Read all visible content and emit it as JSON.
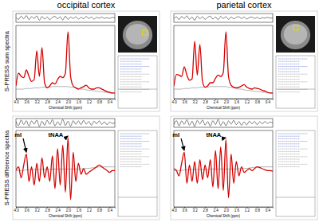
{
  "chart_data": [
    {
      "type": "line",
      "title": "occipital cortex",
      "ylabel": "S-PRESS sum spectra",
      "xlabel": "Chemical Shift (ppm)",
      "x": [
        4.0,
        3.9,
        3.8,
        3.7,
        3.6,
        3.5,
        3.4,
        3.3,
        3.2,
        3.1,
        3.0,
        2.9,
        2.8,
        2.7,
        2.6,
        2.5,
        2.4,
        2.3,
        2.2,
        2.1,
        2.0,
        1.9,
        1.8,
        1.7,
        1.6,
        1.5,
        1.4,
        1.3,
        1.2,
        1.1,
        1.0,
        0.9,
        0.8,
        0.7,
        0.6,
        0.5,
        0.4,
        0.3,
        0.2
      ],
      "xlim": [
        4.0,
        0.2
      ],
      "xticks": [
        {
          "value": 4,
          "label": "4.0"
        },
        3.6,
        3.2,
        2.8,
        2.4,
        {
          "value": 2,
          "label": "2.0"
        },
        1.6,
        1.2,
        0.8,
        0.4
      ],
      "ylim": [
        -0.05,
        1.1
      ],
      "y2lim": [
        -0.15,
        0.15
      ],
      "tick_labels": "x",
      "series": [
        {
          "color": "#000000",
          "axis": "y2",
          "values": [
            0.02,
            -0.05,
            0.06,
            -0.03,
            0.08,
            -0.06,
            0.04,
            -0.02,
            0.07,
            -0.08,
            0.05,
            -0.04,
            0.03,
            -0.06,
            0.02,
            0.05,
            -0.03,
            0.04,
            -0.07,
            0.06,
            -0.05,
            0.03,
            -0.02,
            0.04,
            -0.04,
            0.02,
            -0.03,
            0.05,
            -0.02,
            0.03,
            -0.04,
            0.02,
            -0.01,
            0.03,
            -0.02,
            0.01,
            -0.02,
            0.02,
            0.0
          ]
        },
        {
          "color": "#808080",
          "values": [
            0.1,
            0.1,
            0.1,
            0.1,
            0.11,
            0.11,
            0.11,
            0.12,
            0.12,
            0.12,
            0.13,
            0.13,
            0.13,
            0.13,
            0.14,
            0.14,
            0.14,
            0.14,
            0.14,
            0.14,
            0.14,
            0.13,
            0.13,
            0.12,
            0.11,
            0.1,
            0.1,
            0.09,
            0.08,
            0.08,
            0.07,
            0.07,
            0.06,
            0.06,
            0.05,
            0.05,
            0.04,
            0.04,
            0.04
          ]
        },
        {
          "color": "#d40000",
          "values": [
            0.15,
            0.35,
            0.3,
            0.28,
            0.4,
            0.3,
            0.22,
            0.25,
            0.7,
            0.3,
            0.75,
            0.2,
            0.12,
            0.15,
            0.2,
            0.18,
            0.25,
            0.3,
            0.28,
            0.35,
            1.0,
            0.3,
            0.15,
            0.12,
            0.1,
            0.12,
            0.14,
            0.16,
            0.12,
            0.1,
            0.1,
            0.12,
            0.12,
            0.1,
            0.08,
            0.06,
            0.05,
            0.04,
            0.04
          ]
        }
      ]
    },
    {
      "type": "line",
      "title": "parietal cortex",
      "xlabel": "Chemical Shift (ppm)",
      "x": [
        4.0,
        3.9,
        3.8,
        3.7,
        3.6,
        3.5,
        3.4,
        3.3,
        3.2,
        3.1,
        3.0,
        2.9,
        2.8,
        2.7,
        2.6,
        2.5,
        2.4,
        2.3,
        2.2,
        2.1,
        2.0,
        1.9,
        1.8,
        1.7,
        1.6,
        1.5,
        1.4,
        1.3,
        1.2,
        1.1,
        1.0,
        0.9,
        0.8,
        0.7,
        0.6,
        0.5,
        0.4,
        0.3,
        0.2
      ],
      "xlim": [
        4.0,
        0.2
      ],
      "xticks": [
        {
          "value": 4,
          "label": "4.0"
        },
        3.6,
        3.2,
        2.8,
        2.4,
        {
          "value": 2,
          "label": "2.0"
        },
        1.6,
        1.2,
        0.8,
        0.4
      ],
      "ylim": [
        -0.05,
        1.1
      ],
      "y2lim": [
        -0.15,
        0.15
      ],
      "tick_labels": "x",
      "series": [
        {
          "color": "#000000",
          "axis": "y2",
          "values": [
            -0.03,
            0.04,
            -0.06,
            0.05,
            -0.02,
            0.07,
            -0.05,
            0.03,
            -0.08,
            0.06,
            -0.03,
            0.04,
            -0.05,
            0.02,
            0.06,
            -0.04,
            0.03,
            -0.06,
            0.05,
            -0.02,
            0.04,
            -0.05,
            0.03,
            -0.03,
            0.02,
            0.04,
            -0.02,
            0.03,
            -0.04,
            0.01,
            0.03,
            -0.02,
            0.02,
            -0.03,
            0.01,
            -0.01,
            0.02,
            -0.01,
            0.0
          ]
        },
        {
          "color": "#808080",
          "values": [
            0.1,
            0.1,
            0.1,
            0.1,
            0.11,
            0.11,
            0.11,
            0.12,
            0.12,
            0.12,
            0.13,
            0.13,
            0.13,
            0.13,
            0.14,
            0.14,
            0.14,
            0.14,
            0.14,
            0.14,
            0.14,
            0.13,
            0.13,
            0.12,
            0.11,
            0.1,
            0.1,
            0.09,
            0.08,
            0.08,
            0.07,
            0.07,
            0.06,
            0.06,
            0.05,
            0.05,
            0.04,
            0.04,
            0.04
          ]
        },
        {
          "color": "#d40000",
          "values": [
            0.15,
            0.33,
            0.32,
            0.3,
            0.45,
            0.32,
            0.24,
            0.26,
            0.85,
            0.32,
            0.8,
            0.22,
            0.13,
            0.15,
            0.2,
            0.2,
            0.27,
            0.32,
            0.3,
            0.36,
            1.0,
            0.3,
            0.16,
            0.13,
            0.12,
            0.13,
            0.15,
            0.17,
            0.13,
            0.11,
            0.1,
            0.12,
            0.11,
            0.1,
            0.08,
            0.07,
            0.05,
            0.04,
            0.04
          ]
        }
      ]
    },
    {
      "type": "line",
      "ylabel": "S-PRESS difference spectra",
      "xlabel": "Chemical Shift (ppm)",
      "x": [
        4.0,
        3.9,
        3.8,
        3.7,
        3.6,
        3.5,
        3.4,
        3.3,
        3.2,
        3.1,
        3.0,
        2.9,
        2.8,
        2.7,
        2.6,
        2.5,
        2.4,
        2.3,
        2.2,
        2.1,
        2.0,
        1.9,
        1.8,
        1.7,
        1.6,
        1.5,
        1.4,
        1.3,
        1.2,
        1.1,
        1.0,
        0.9,
        0.8,
        0.7,
        0.6,
        0.5,
        0.4,
        0.3,
        0.2
      ],
      "xlim": [
        4.0,
        0.2
      ],
      "xticks": [
        {
          "value": 4,
          "label": "4.0"
        },
        3.6,
        3.2,
        2.8,
        2.4,
        {
          "value": 2,
          "label": "2.0"
        },
        1.6,
        1.2,
        0.8,
        0.4
      ],
      "ylim": [
        -1.0,
        1.1
      ],
      "y2lim": [
        -0.15,
        0.15
      ],
      "tick_labels": "x",
      "annotations": [
        {
          "text": "mI",
          "x": 3.6,
          "y": 0.5
        },
        {
          "text": "tNAA",
          "x": 2.0,
          "y": 0.95
        }
      ],
      "series": [
        {
          "color": "#000000",
          "axis": "y2",
          "values": [
            0.05,
            -0.09,
            0.1,
            -0.06,
            0.08,
            -0.11,
            0.07,
            -0.04,
            0.1,
            -0.12,
            0.06,
            -0.08,
            0.09,
            -0.05,
            0.11,
            -0.1,
            0.04,
            -0.07,
            0.12,
            -0.09,
            0.06,
            -0.11,
            0.08,
            -0.05,
            0.07,
            -0.06,
            0.09,
            -0.04,
            0.05,
            -0.08,
            0.06,
            -0.03,
            0.07,
            -0.05,
            0.04,
            -0.06,
            0.03,
            -0.02,
            0.0
          ]
        },
        {
          "color": "#808080",
          "values": [
            0,
            0,
            0,
            0,
            0.02,
            0.02,
            0.02,
            0.03,
            0.03,
            0.03,
            0.03,
            0.03,
            0.03,
            0.03,
            0.04,
            0.04,
            0.04,
            0.04,
            0.04,
            0.04,
            0.04,
            0.04,
            0.04,
            0.04,
            0.04,
            0.05,
            0.05,
            0.06,
            0.06,
            0.07,
            0.08,
            0.09,
            0.1,
            0.1,
            0.1,
            0.1,
            0.1,
            0.1,
            0.1
          ]
        },
        {
          "color": "#d40000",
          "values": [
            0.0,
            0.1,
            -0.2,
            0.15,
            0.45,
            -0.3,
            0.1,
            -0.4,
            0.2,
            -0.3,
            0.35,
            -0.2,
            0.1,
            -0.3,
            0.4,
            -0.5,
            0.6,
            -0.4,
            0.7,
            -0.6,
            0.9,
            -0.8,
            0.5,
            -0.3,
            0.2,
            -0.1,
            0.05,
            -0.1,
            -0.05,
            0.0,
            0.05,
            0.1,
            0.15,
            0.1,
            0.05,
            0.0,
            -0.05,
            0.0,
            0.0
          ]
        }
      ]
    },
    {
      "type": "line",
      "xlabel": "Chemical Shift (ppm)",
      "x": [
        4.0,
        3.9,
        3.8,
        3.7,
        3.6,
        3.5,
        3.4,
        3.3,
        3.2,
        3.1,
        3.0,
        2.9,
        2.8,
        2.7,
        2.6,
        2.5,
        2.4,
        2.3,
        2.2,
        2.1,
        2.0,
        1.9,
        1.8,
        1.7,
        1.6,
        1.5,
        1.4,
        1.3,
        1.2,
        1.1,
        1.0,
        0.9,
        0.8,
        0.7,
        0.6,
        0.5,
        0.4,
        0.3,
        0.2
      ],
      "xlim": [
        4.0,
        0.2
      ],
      "xticks": [
        {
          "value": 4,
          "label": "4.0"
        },
        3.6,
        3.2,
        2.8,
        2.4,
        {
          "value": 2,
          "label": "2.0"
        },
        1.6,
        1.2,
        0.8,
        0.4
      ],
      "ylim": [
        -1.0,
        1.1
      ],
      "y2lim": [
        -0.15,
        0.15
      ],
      "tick_labels": "x",
      "annotations": [
        {
          "text": "mI",
          "x": 3.6,
          "y": 0.55
        },
        {
          "text": "tNAA",
          "x": 2.0,
          "y": 0.9
        }
      ],
      "series": [
        {
          "color": "#000000",
          "axis": "y2",
          "values": [
            -0.06,
            0.08,
            -0.1,
            0.07,
            -0.05,
            0.11,
            -0.08,
            0.06,
            -0.12,
            0.09,
            -0.04,
            0.1,
            -0.07,
            0.05,
            -0.11,
            0.08,
            -0.06,
            0.12,
            -0.09,
            0.05,
            -0.1,
            0.07,
            -0.04,
            0.09,
            -0.06,
            0.05,
            -0.08,
            0.04,
            -0.07,
            0.06,
            -0.03,
            0.05,
            -0.06,
            0.04,
            -0.03,
            0.05,
            -0.02,
            0.03,
            0.0
          ]
        },
        {
          "color": "#808080",
          "values": [
            0,
            0,
            0,
            0,
            0.02,
            0.02,
            0.02,
            0.03,
            0.03,
            0.03,
            0.03,
            0.03,
            0.03,
            0.03,
            0.04,
            0.04,
            0.04,
            0.04,
            0.04,
            0.04,
            0.04,
            0.04,
            0.04,
            0.04,
            0.04,
            0.05,
            0.05,
            0.06,
            0.06,
            0.07,
            0.08,
            0.09,
            0.1,
            0.1,
            0.1,
            0.1,
            0.1,
            0.1,
            0.1
          ]
        },
        {
          "color": "#d40000",
          "values": [
            0.05,
            0.0,
            -0.15,
            0.2,
            0.5,
            -0.35,
            0.15,
            -0.3,
            0.25,
            -0.35,
            0.3,
            -0.25,
            0.15,
            -0.2,
            0.3,
            -0.45,
            0.55,
            -0.5,
            0.65,
            -0.55,
            0.85,
            -0.75,
            0.45,
            -0.35,
            0.25,
            -0.15,
            0.1,
            -0.05,
            0.0,
            0.05,
            0.0,
            0.05,
            0.1,
            0.08,
            0.05,
            0.02,
            0.0,
            0.0,
            -0.02
          ]
        }
      ]
    }
  ]
}
